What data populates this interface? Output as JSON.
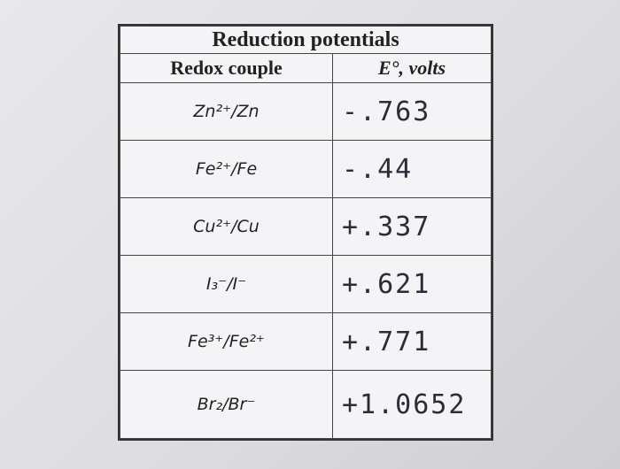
{
  "table": {
    "title": "Reduction potentials",
    "header": [
      "Redox couple",
      "E°, volts"
    ],
    "rows": [
      [
        "Zn²⁺/Zn",
        "-.763"
      ],
      [
        "Fe²⁺/Fe",
        "-.44"
      ],
      [
        "Cu²⁺/Cu",
        "+.337"
      ],
      [
        "I₃⁻/I⁻",
        "+.621"
      ],
      [
        "Fe³⁺/Fe²⁺",
        "+.771"
      ],
      [
        "Br₂/Br⁻",
        "+1.0652"
      ]
    ]
  }
}
